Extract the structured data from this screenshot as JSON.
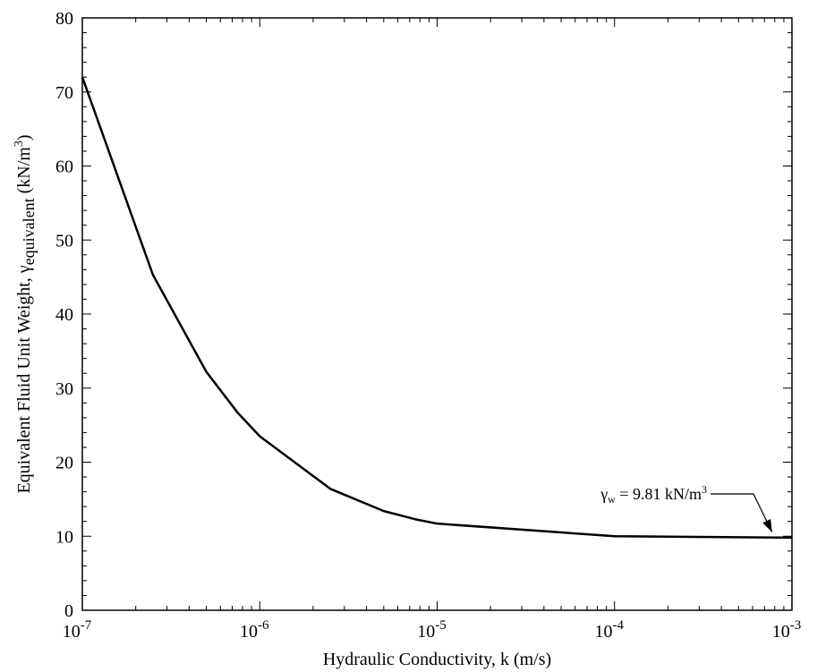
{
  "chart_data": {
    "type": "line",
    "xscale": "log",
    "xlim": [
      1e-07,
      0.001
    ],
    "ylim": [
      0,
      80
    ],
    "grid": false,
    "xlabel": "Hydraulic Conductivity, k (m/s)",
    "ylabel": {
      "main": "Equivalent Fluid Unit Weight, γ",
      "subscript": "equivalent",
      "unit_open": " (kN/m",
      "unit_sup": "3",
      "unit_close": ")"
    },
    "x_ticks": [
      {
        "value": 1e-07,
        "base": "10",
        "exp": "-7"
      },
      {
        "value": 1e-06,
        "base": "10",
        "exp": "-6"
      },
      {
        "value": 1e-05,
        "base": "10",
        "exp": "-5"
      },
      {
        "value": 0.0001,
        "base": "10",
        "exp": "-4"
      },
      {
        "value": 0.001,
        "base": "10",
        "exp": "-3"
      }
    ],
    "y_ticks": [
      0,
      10,
      20,
      30,
      40,
      50,
      60,
      70,
      80
    ],
    "series": [
      {
        "color": "#000000",
        "x": [
          1e-07,
          2.5e-07,
          5e-07,
          7.5e-07,
          1e-06,
          2.5e-06,
          5e-06,
          7.5e-06,
          1e-05,
          0.0001,
          0.001
        ],
        "y": [
          72.0,
          45.3,
          32.2,
          26.7,
          23.5,
          16.4,
          13.4,
          12.3,
          11.7,
          10.0,
          9.81
        ]
      }
    ],
    "annotations": [
      {
        "symbol": "γ",
        "subscript": "w",
        "text": " = 9.81 kN/m",
        "sup": "3",
        "points_to": {
          "x": 0.0008,
          "y": 9.81
        }
      }
    ]
  }
}
